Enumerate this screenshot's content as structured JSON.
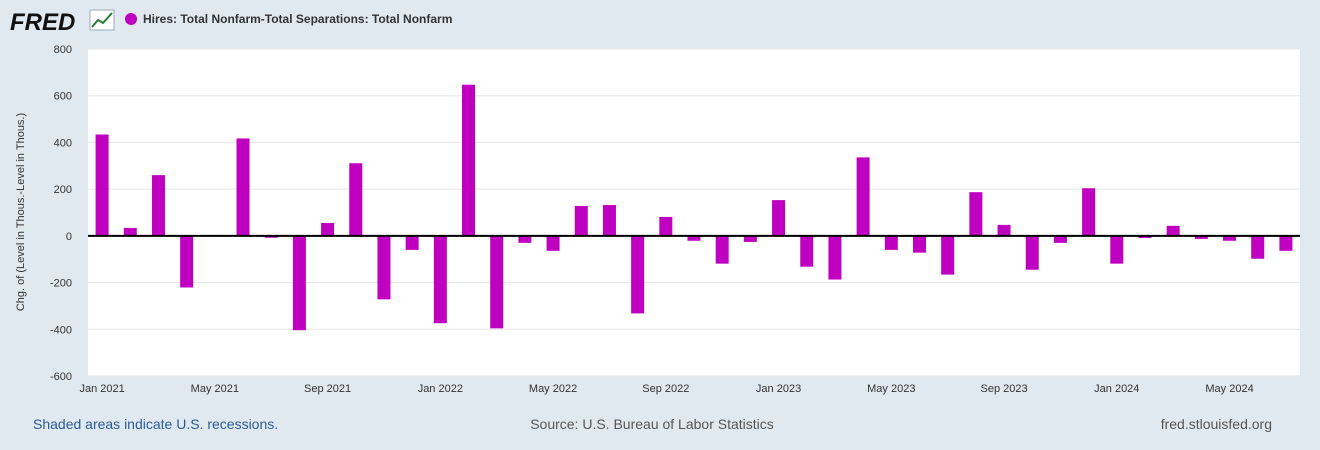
{
  "logo": "FRED",
  "chart_data": {
    "type": "bar",
    "y_label": "Chg. of (Level in Thous.-Level in Thous.)",
    "categories": [
      "Jan 2021",
      null,
      null,
      null,
      "May 2021",
      null,
      null,
      null,
      "Sep 2021",
      null,
      null,
      null,
      "Jan 2022",
      null,
      null,
      null,
      "May 2022",
      null,
      null,
      null,
      "Sep 2022",
      null,
      null,
      null,
      "Jan 2023",
      null,
      null,
      null,
      "May 2023",
      null,
      null,
      null,
      "Sep 2023",
      null,
      null,
      null,
      "Jan 2024",
      null,
      null,
      null,
      "May 2024",
      null,
      null
    ],
    "series": [
      {
        "name": "Hires: Total Nonfarm-Total Separations: Total Nonfarm",
        "color": "#c000c0",
        "values": [
          434,
          34,
          260,
          -221,
          0,
          417,
          -8,
          -404,
          55,
          311,
          -272,
          -60,
          -374,
          647,
          -396,
          -30,
          -64,
          128,
          132,
          -332,
          81,
          -21,
          -119,
          -26,
          153,
          -132,
          -187,
          336,
          -60,
          -72,
          -166,
          187,
          47,
          -145,
          -30,
          204,
          -119,
          -9,
          43,
          -13,
          -21,
          -98,
          -64
        ]
      }
    ],
    "ylim": [
      -600,
      800
    ],
    "yticks": [
      -600,
      -400,
      -200,
      0,
      200,
      400,
      600,
      800
    ],
    "grid": true
  },
  "footer": {
    "recessions": "Shaded areas indicate U.S. recessions.",
    "source": "Source: U.S. Bureau of Labor Statistics",
    "site": "fred.stlouisfed.org"
  }
}
